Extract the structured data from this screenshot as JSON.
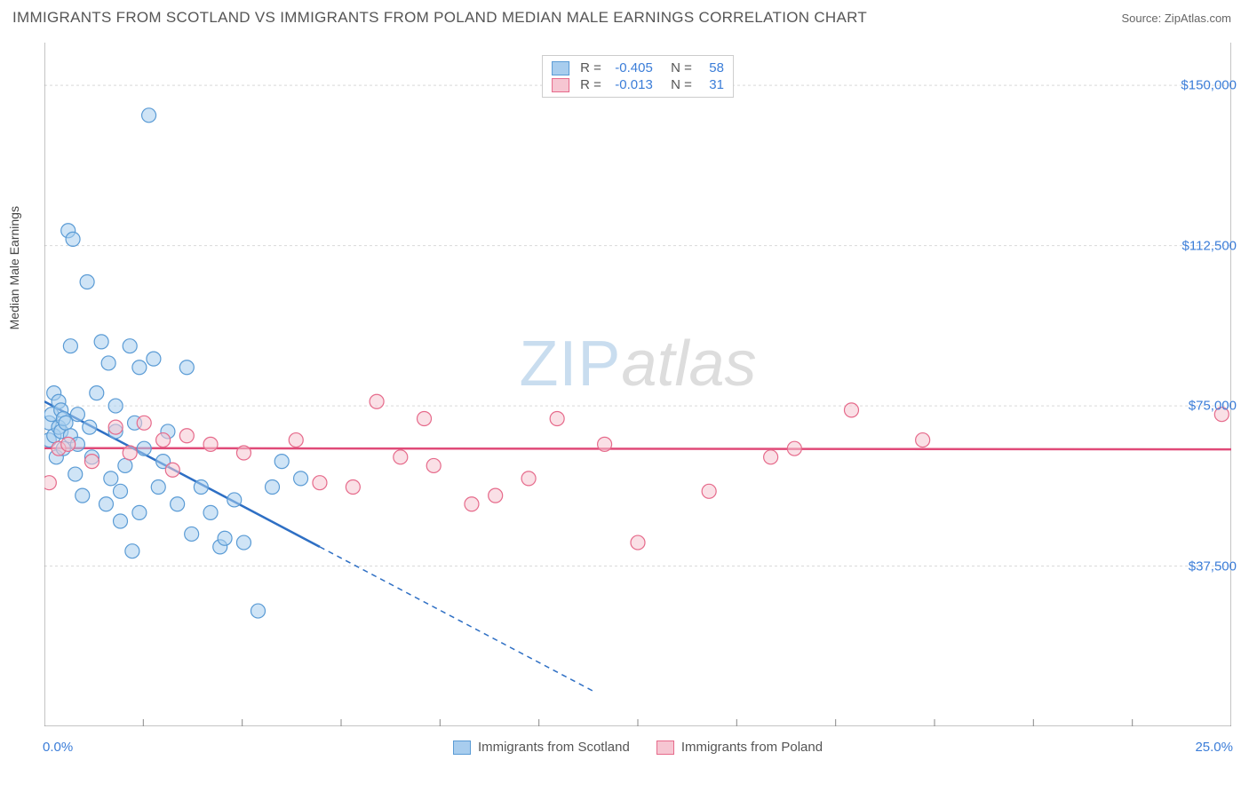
{
  "title": "IMMIGRANTS FROM SCOTLAND VS IMMIGRANTS FROM POLAND MEDIAN MALE EARNINGS CORRELATION CHART",
  "source": "Source: ZipAtlas.com",
  "watermark_a": "ZIP",
  "watermark_b": "atlas",
  "chart": {
    "type": "scatter",
    "y_axis_label": "Median Male Earnings",
    "xlim": [
      0,
      25
    ],
    "ylim": [
      0,
      160000
    ],
    "x_ticks_major": [
      0,
      25
    ],
    "x_tick_labels": [
      "0.0%",
      "25.0%"
    ],
    "x_ticks_minor": [
      2.083,
      4.167,
      6.25,
      8.333,
      10.417,
      12.5,
      14.583,
      16.667,
      18.75,
      20.833,
      22.917
    ],
    "y_gridlines": [
      37500,
      75000,
      112500,
      150000
    ],
    "y_tick_labels": [
      "$37,500",
      "$75,000",
      "$112,500",
      "$150,000"
    ],
    "grid_color": "#d9d9d9",
    "axis_color": "#888888",
    "background_color": "#ffffff",
    "marker_radius": 8,
    "marker_opacity": 0.55,
    "series": [
      {
        "name": "Immigrants from Scotland",
        "fill": "#a8cdee",
        "stroke": "#5a9bd5",
        "trend_color": "#2e6fc4",
        "R": "-0.405",
        "N": "58",
        "trend": {
          "x1": 0,
          "y1": 76000,
          "x2": 5.8,
          "y2": 42000,
          "x2_ext": 11.6,
          "y2_ext": 8000
        },
        "points": [
          [
            0.1,
            71000
          ],
          [
            0.1,
            67000
          ],
          [
            0.15,
            73000
          ],
          [
            0.2,
            68000
          ],
          [
            0.2,
            78000
          ],
          [
            0.25,
            63000
          ],
          [
            0.3,
            76000
          ],
          [
            0.3,
            70000
          ],
          [
            0.35,
            69000
          ],
          [
            0.35,
            74000
          ],
          [
            0.4,
            65000
          ],
          [
            0.4,
            72000
          ],
          [
            0.45,
            71000
          ],
          [
            0.5,
            116000
          ],
          [
            0.55,
            89000
          ],
          [
            0.55,
            68000
          ],
          [
            0.6,
            114000
          ],
          [
            0.65,
            59000
          ],
          [
            0.7,
            73000
          ],
          [
            0.7,
            66000
          ],
          [
            0.8,
            54000
          ],
          [
            0.9,
            104000
          ],
          [
            0.95,
            70000
          ],
          [
            1.0,
            63000
          ],
          [
            1.1,
            78000
          ],
          [
            1.2,
            90000
          ],
          [
            1.3,
            52000
          ],
          [
            1.35,
            85000
          ],
          [
            1.4,
            58000
          ],
          [
            1.5,
            69000
          ],
          [
            1.5,
            75000
          ],
          [
            1.6,
            55000
          ],
          [
            1.6,
            48000
          ],
          [
            1.7,
            61000
          ],
          [
            1.8,
            89000
          ],
          [
            1.85,
            41000
          ],
          [
            1.9,
            71000
          ],
          [
            2.0,
            50000
          ],
          [
            2.0,
            84000
          ],
          [
            2.1,
            65000
          ],
          [
            2.2,
            143000
          ],
          [
            2.3,
            86000
          ],
          [
            2.4,
            56000
          ],
          [
            2.5,
            62000
          ],
          [
            2.6,
            69000
          ],
          [
            2.8,
            52000
          ],
          [
            3.0,
            84000
          ],
          [
            3.1,
            45000
          ],
          [
            3.3,
            56000
          ],
          [
            3.5,
            50000
          ],
          [
            3.7,
            42000
          ],
          [
            3.8,
            44000
          ],
          [
            4.0,
            53000
          ],
          [
            4.2,
            43000
          ],
          [
            4.5,
            27000
          ],
          [
            4.8,
            56000
          ],
          [
            5.0,
            62000
          ],
          [
            5.4,
            58000
          ]
        ]
      },
      {
        "name": "Immigrants from Poland",
        "fill": "#f6c6d2",
        "stroke": "#e66a8b",
        "trend_color": "#e04a78",
        "R": "-0.013",
        "N": "31",
        "trend": {
          "x1": 0,
          "y1": 65100,
          "x2": 25,
          "y2": 64800
        },
        "points": [
          [
            0.1,
            57000
          ],
          [
            0.3,
            65000
          ],
          [
            0.5,
            66000
          ],
          [
            1.0,
            62000
          ],
          [
            1.5,
            70000
          ],
          [
            1.8,
            64000
          ],
          [
            2.1,
            71000
          ],
          [
            2.5,
            67000
          ],
          [
            2.7,
            60000
          ],
          [
            3.0,
            68000
          ],
          [
            3.5,
            66000
          ],
          [
            4.2,
            64000
          ],
          [
            5.3,
            67000
          ],
          [
            5.8,
            57000
          ],
          [
            6.5,
            56000
          ],
          [
            7.0,
            76000
          ],
          [
            7.5,
            63000
          ],
          [
            8.0,
            72000
          ],
          [
            8.2,
            61000
          ],
          [
            9.0,
            52000
          ],
          [
            9.5,
            54000
          ],
          [
            10.2,
            58000
          ],
          [
            10.8,
            72000
          ],
          [
            11.8,
            66000
          ],
          [
            12.5,
            43000
          ],
          [
            14.0,
            55000
          ],
          [
            15.3,
            63000
          ],
          [
            15.8,
            65000
          ],
          [
            17.0,
            74000
          ],
          [
            18.5,
            67000
          ],
          [
            24.8,
            73000
          ]
        ]
      }
    ],
    "legend_top": [
      {
        "swatch_fill": "#a8cdee",
        "swatch_stroke": "#5a9bd5",
        "R": "-0.405",
        "N": "58"
      },
      {
        "swatch_fill": "#f6c6d2",
        "swatch_stroke": "#e66a8b",
        "R": "-0.013",
        "N": "31"
      }
    ],
    "legend_bottom": [
      {
        "swatch_fill": "#a8cdee",
        "swatch_stroke": "#5a9bd5",
        "label": "Immigrants from Scotland"
      },
      {
        "swatch_fill": "#f6c6d2",
        "swatch_stroke": "#e66a8b",
        "label": "Immigrants from Poland"
      }
    ]
  }
}
